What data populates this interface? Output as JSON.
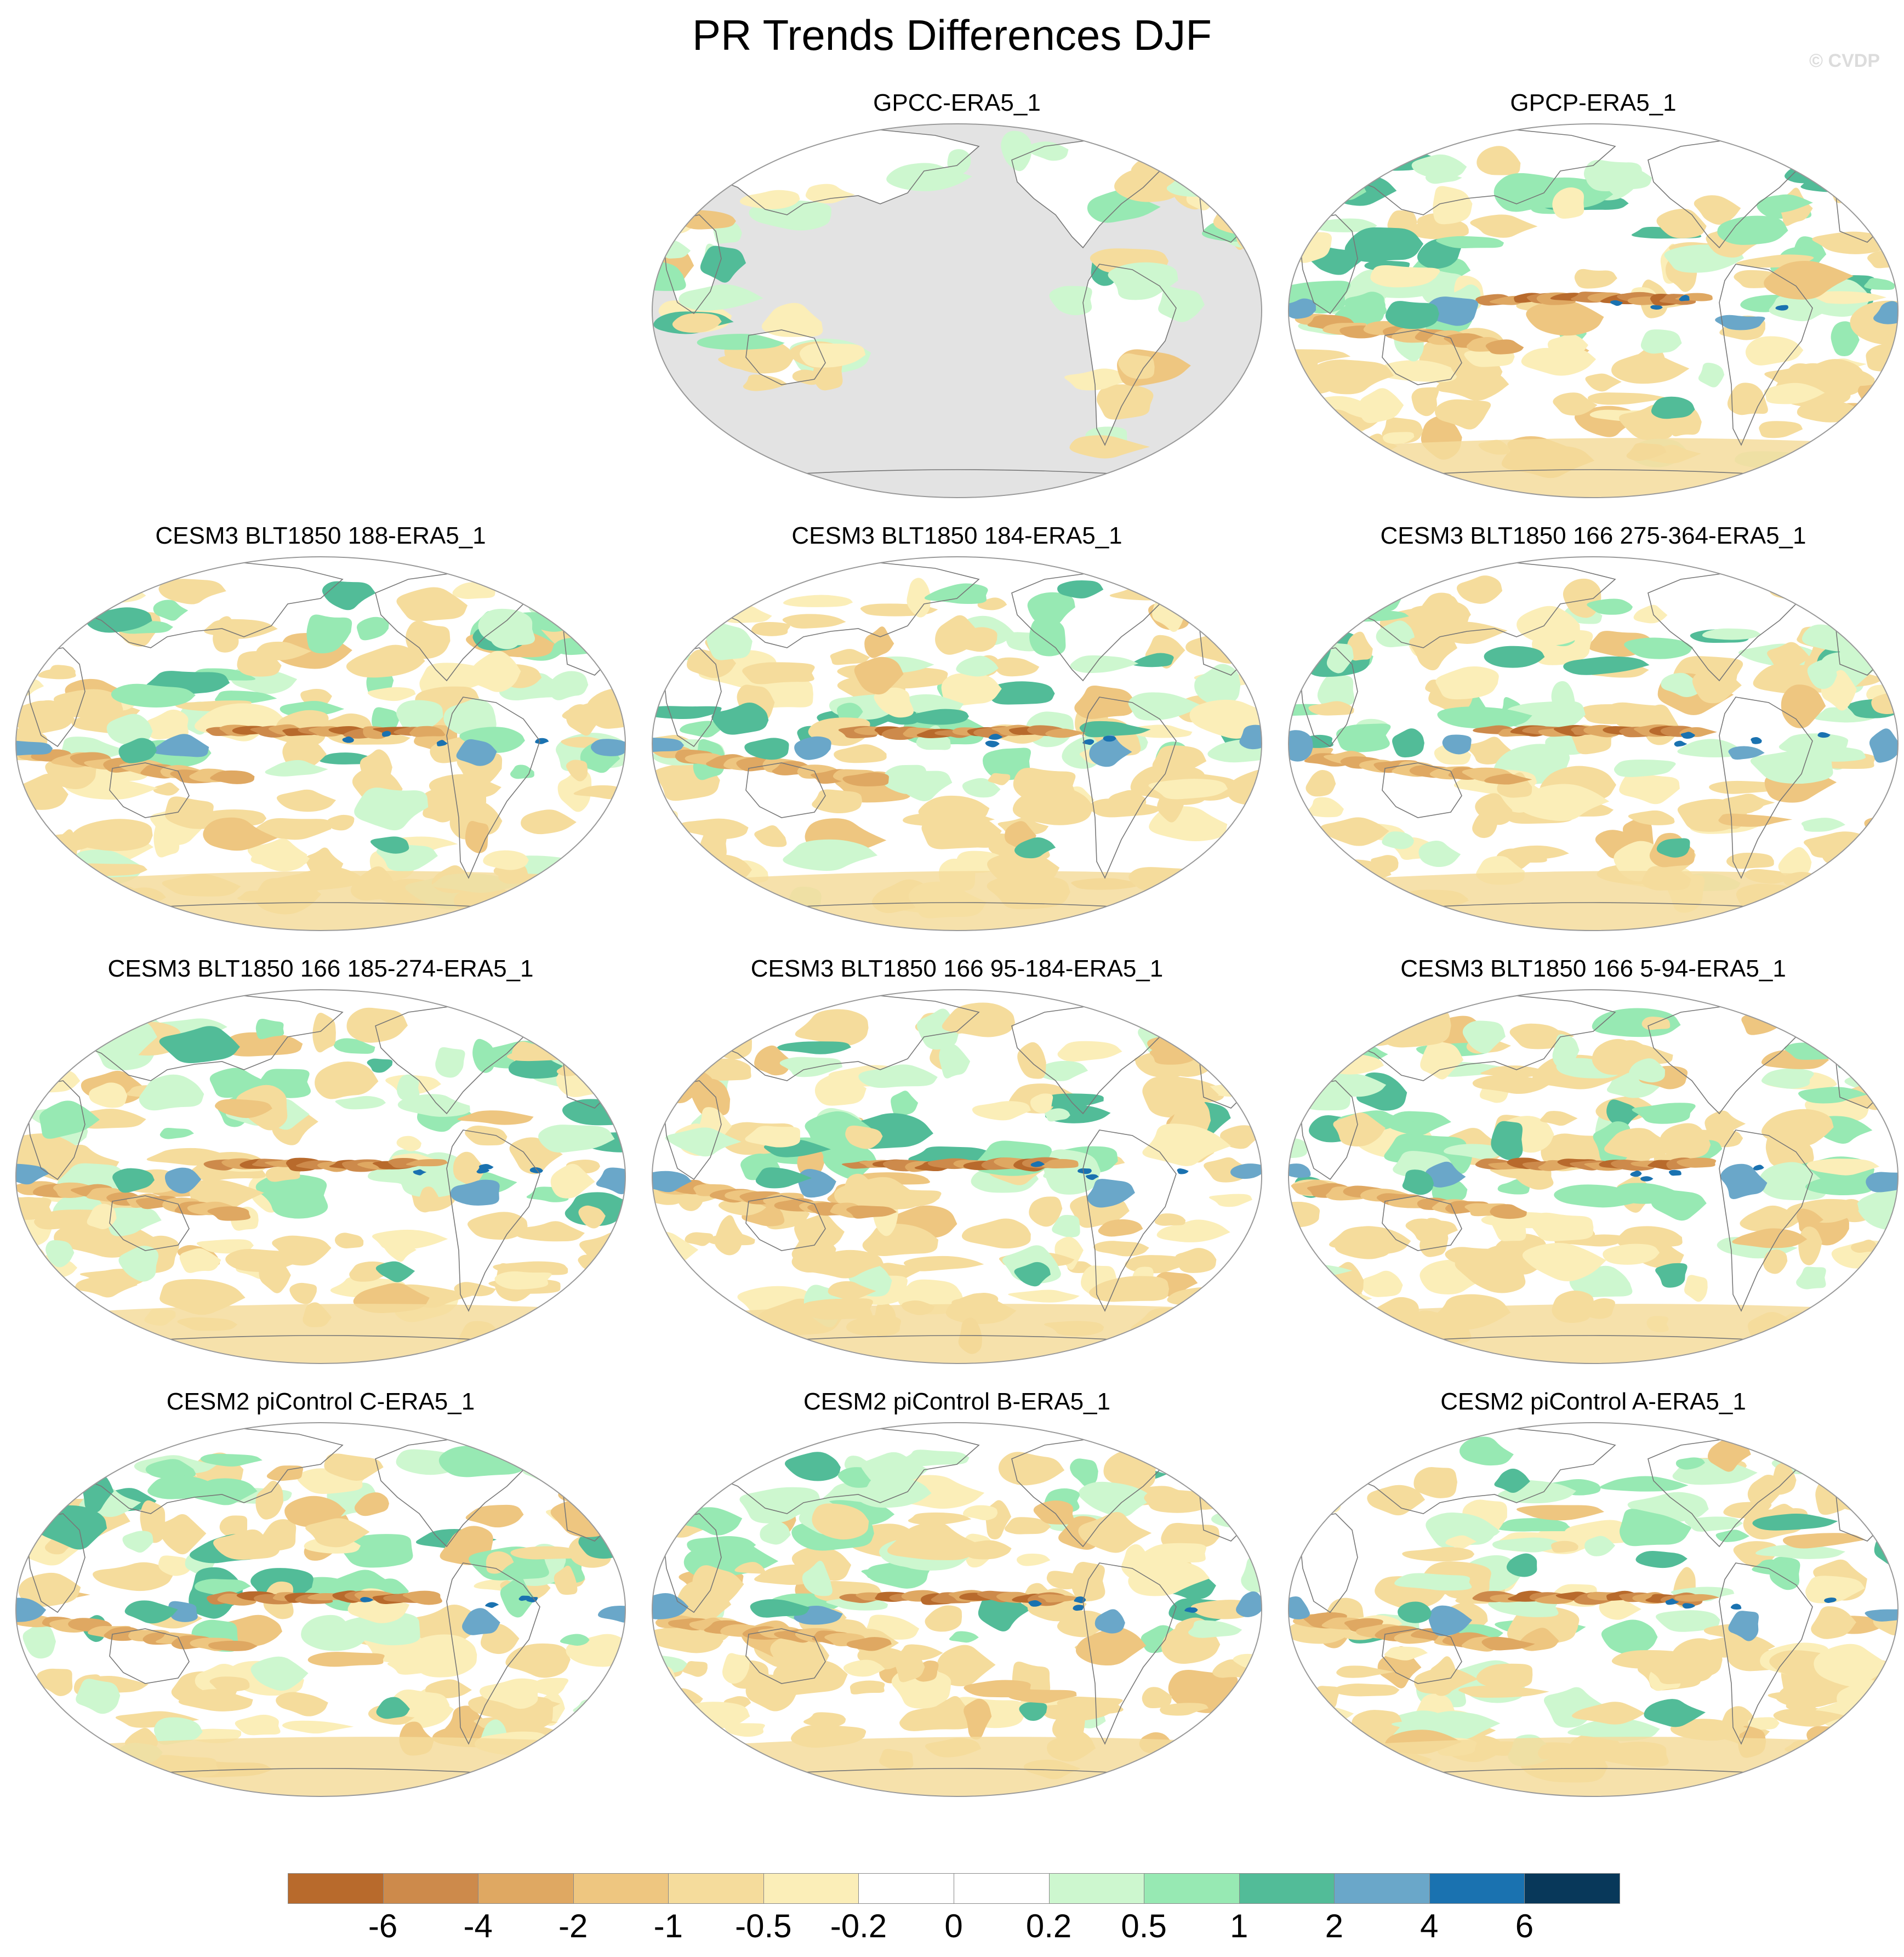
{
  "figure": {
    "title": "PR Trends Differences DJF",
    "watermark": "© CVDP",
    "panels": [
      {
        "title": "GPCC-ERA5_1",
        "land_only": true,
        "seed": 11
      },
      {
        "title": "GPCP-ERA5_1",
        "land_only": false,
        "seed": 23
      },
      {
        "title": "CESM3 BLT1850 188-ERA5_1",
        "land_only": false,
        "seed": 37
      },
      {
        "title": "CESM3 BLT1850 184-ERA5_1",
        "land_only": false,
        "seed": 41
      },
      {
        "title": "CESM3 BLT1850 166 275-364-ERA5_1",
        "land_only": false,
        "seed": 53
      },
      {
        "title": "CESM3 BLT1850 166 185-274-ERA5_1",
        "land_only": false,
        "seed": 67
      },
      {
        "title": "CESM3 BLT1850 166 95-184-ERA5_1",
        "land_only": false,
        "seed": 71
      },
      {
        "title": "CESM3 BLT1850 166 5-94-ERA5_1",
        "land_only": false,
        "seed": 83
      },
      {
        "title": "CESM2 piControl C-ERA5_1",
        "land_only": false,
        "seed": 97
      },
      {
        "title": "CESM2 piControl B-ERA5_1",
        "land_only": false,
        "seed": 101
      },
      {
        "title": "CESM2 piControl A-ERA5_1",
        "land_only": false,
        "seed": 113
      }
    ],
    "map_projection": "Robinson, centered on Pacific",
    "missing_color": "#e3e3e3"
  },
  "colorbar": {
    "levels": [
      "-6",
      "-4",
      "-2",
      "-1",
      "-0.5",
      "-0.2",
      "0",
      "0.2",
      "0.5",
      "1",
      "2",
      "4",
      "6"
    ],
    "colors": [
      "#b86a2c",
      "#cd8a4b",
      "#dfa862",
      "#eec680",
      "#f5dc9c",
      "#fbeeb8",
      "#ffffff",
      "#ffffff",
      "#cdf7cf",
      "#97e9b3",
      "#52bc98",
      "#6aa7c9",
      "#1a72b0",
      "#08385a"
    ]
  }
}
